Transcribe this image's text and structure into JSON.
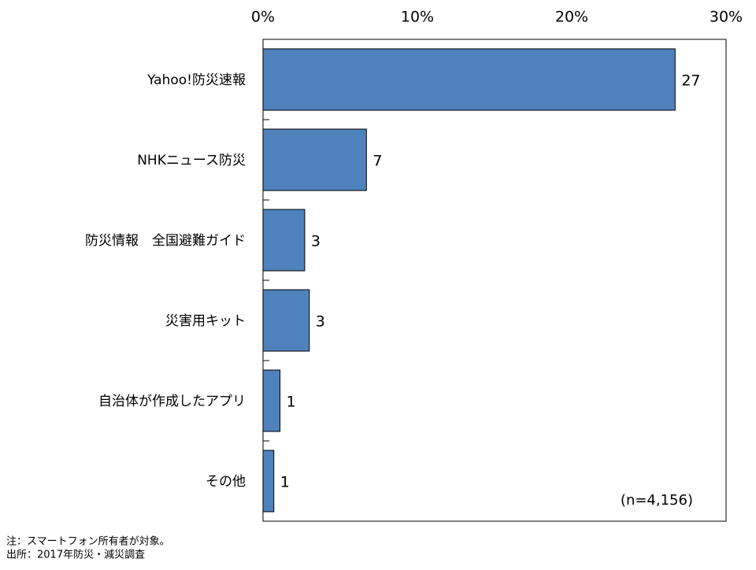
{
  "chart_data": {
    "type": "bar",
    "orientation": "horizontal",
    "categories": [
      "Yahoo!防災速報",
      "NHKニュース防災",
      "防災情報　全国避難ガイド",
      "災害用キット",
      "自治体が作成したアプリ",
      "その他"
    ],
    "values": [
      26.7,
      6.7,
      2.7,
      3.0,
      1.1,
      0.7
    ],
    "value_labels": [
      "27",
      "7",
      "3",
      "3",
      "1",
      "1"
    ],
    "color": "#4f81bd",
    "xlim": [
      0,
      30
    ],
    "xticks": [
      {
        "value": 0,
        "label": "0%"
      },
      {
        "value": 10,
        "label": "10%"
      },
      {
        "value": 20,
        "label": "20%"
      },
      {
        "value": 30,
        "label": "30%"
      }
    ],
    "annotation": "(n=4,156)",
    "notes": [
      "注：スマートフォン所有者が対象。",
      "出所：2017年防災・減災調査"
    ]
  }
}
